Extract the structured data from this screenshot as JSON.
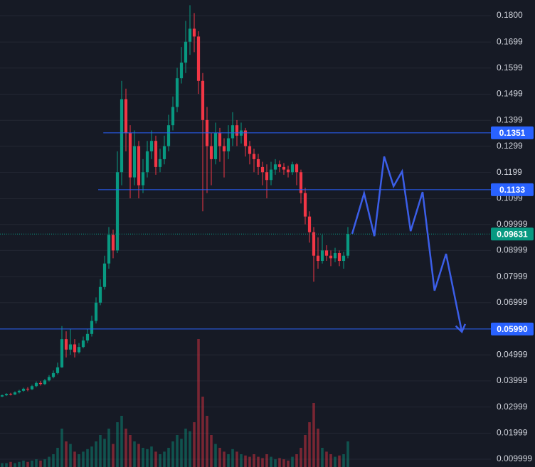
{
  "chart_data": {
    "type": "candlestick",
    "up_color": "#089981",
    "down_color": "#f23645",
    "grid": true,
    "ylim": [
      0.007,
      0.186
    ],
    "yticks": [
      {
        "value": 0.18,
        "label": "0.1800"
      },
      0.1699,
      0.1599,
      0.1499,
      0.1399,
      0.1299,
      0.1199,
      0.1099,
      0.09999,
      0.08999,
      0.07999,
      0.06999,
      0.05999,
      0.04999,
      0.03999,
      0.02999,
      0.01999,
      0.009999
    ],
    "xlim": [
      -0.5,
      114.5
    ],
    "open": [
      0.034,
      0.0345,
      0.035,
      0.0348,
      0.0356,
      0.0362,
      0.037,
      0.0368,
      0.038,
      0.0392,
      0.0388,
      0.0402,
      0.0415,
      0.043,
      0.0452,
      0.056,
      0.052,
      0.054,
      0.051,
      0.053,
      0.0555,
      0.058,
      0.063,
      0.07,
      0.076,
      0.085,
      0.096,
      0.09,
      0.12,
      0.148,
      0.135,
      0.118,
      0.13,
      0.115,
      0.12,
      0.128,
      0.132,
      0.122,
      0.125,
      0.13,
      0.138,
      0.145,
      0.156,
      0.162,
      0.17,
      0.175,
      0.172,
      0.155,
      0.14,
      0.13,
      0.125,
      0.135,
      0.13,
      0.128,
      0.133,
      0.138,
      0.134,
      0.136,
      0.13,
      0.127,
      0.125,
      0.122,
      0.12,
      0.117,
      0.121,
      0.123,
      0.122,
      0.121,
      0.12,
      0.123,
      0.12,
      0.112,
      0.103,
      0.097,
      0.088,
      0.086,
      0.09,
      0.088,
      0.087,
      0.089,
      0.086,
      0.088
    ],
    "high": [
      0.0348,
      0.0353,
      0.0354,
      0.036,
      0.0366,
      0.0374,
      0.0376,
      0.0385,
      0.0398,
      0.04,
      0.0408,
      0.0422,
      0.044,
      0.047,
      0.061,
      0.059,
      0.06,
      0.056,
      0.0545,
      0.057,
      0.06,
      0.065,
      0.072,
      0.079,
      0.088,
      0.099,
      0.098,
      0.128,
      0.155,
      0.152,
      0.138,
      0.136,
      0.132,
      0.125,
      0.132,
      0.136,
      0.134,
      0.129,
      0.134,
      0.142,
      0.149,
      0.16,
      0.168,
      0.178,
      0.184,
      0.181,
      0.174,
      0.158,
      0.145,
      0.135,
      0.139,
      0.137,
      0.133,
      0.138,
      0.143,
      0.14,
      0.139,
      0.137,
      0.132,
      0.129,
      0.127,
      0.124,
      0.123,
      0.124,
      0.125,
      0.1245,
      0.1235,
      0.1225,
      0.124,
      0.1235,
      0.121,
      0.114,
      0.105,
      0.099,
      0.095,
      0.096,
      0.092,
      0.09,
      0.091,
      0.09,
      0.0895,
      0.099
    ],
    "low": [
      0.0338,
      0.0342,
      0.0344,
      0.0346,
      0.0352,
      0.0358,
      0.036,
      0.0365,
      0.0376,
      0.0382,
      0.0384,
      0.0398,
      0.041,
      0.0425,
      0.045,
      0.049,
      0.05,
      0.049,
      0.0505,
      0.0525,
      0.0545,
      0.057,
      0.062,
      0.069,
      0.075,
      0.083,
      0.087,
      0.089,
      0.115,
      0.128,
      0.11,
      0.115,
      0.11,
      0.112,
      0.118,
      0.125,
      0.119,
      0.12,
      0.123,
      0.128,
      0.136,
      0.143,
      0.154,
      0.158,
      0.165,
      0.166,
      0.15,
      0.105,
      0.112,
      0.115,
      0.123,
      0.124,
      0.118,
      0.125,
      0.13,
      0.13,
      0.131,
      0.126,
      0.123,
      0.12,
      0.119,
      0.115,
      0.11,
      0.115,
      0.119,
      0.12,
      0.119,
      0.118,
      0.119,
      0.115,
      0.108,
      0.1,
      0.093,
      0.078,
      0.083,
      0.085,
      0.086,
      0.084,
      0.0855,
      0.084,
      0.083,
      0.087
    ],
    "close": [
      0.0345,
      0.035,
      0.0348,
      0.0356,
      0.0362,
      0.037,
      0.0368,
      0.038,
      0.0392,
      0.0388,
      0.0402,
      0.0415,
      0.043,
      0.0452,
      0.056,
      0.052,
      0.054,
      0.051,
      0.053,
      0.0555,
      0.058,
      0.063,
      0.07,
      0.076,
      0.085,
      0.096,
      0.09,
      0.12,
      0.148,
      0.135,
      0.118,
      0.13,
      0.115,
      0.12,
      0.128,
      0.132,
      0.122,
      0.125,
      0.13,
      0.138,
      0.145,
      0.156,
      0.162,
      0.17,
      0.175,
      0.172,
      0.155,
      0.14,
      0.13,
      0.125,
      0.135,
      0.13,
      0.128,
      0.133,
      0.138,
      0.134,
      0.136,
      0.13,
      0.127,
      0.125,
      0.122,
      0.12,
      0.117,
      0.121,
      0.123,
      0.122,
      0.121,
      0.12,
      0.123,
      0.12,
      0.112,
      0.103,
      0.097,
      0.088,
      0.086,
      0.09,
      0.088,
      0.087,
      0.089,
      0.086,
      0.088,
      0.0963
    ],
    "volume": [
      3,
      3,
      4,
      3,
      4,
      5,
      4,
      5,
      6,
      5,
      6,
      8,
      10,
      15,
      30,
      20,
      18,
      12,
      10,
      12,
      14,
      16,
      20,
      25,
      22,
      30,
      18,
      35,
      40,
      30,
      25,
      20,
      18,
      15,
      14,
      16,
      12,
      10,
      12,
      15,
      20,
      25,
      22,
      30,
      28,
      35,
      100,
      55,
      40,
      25,
      18,
      15,
      12,
      10,
      14,
      12,
      10,
      9,
      8,
      10,
      8,
      7,
      10,
      8,
      6,
      7,
      6,
      5,
      8,
      10,
      15,
      25,
      35,
      50,
      30,
      15,
      12,
      10,
      8,
      9,
      10,
      20
    ],
    "price_lines": [
      {
        "value": 0.1351,
        "from": 23.7,
        "color": "#2962ff"
      },
      {
        "value": 0.1133,
        "from": 22.5,
        "color": "#2962ff"
      },
      {
        "value": {
          "value": 0.0599,
          "label": "0.05990"
        },
        "from": -0.5,
        "color": "#2962ff"
      },
      {
        "value": 0.09631,
        "from": -0.5,
        "color": "#089981",
        "style": "dotted"
      }
    ],
    "projection": {
      "color": "#3b5ee8",
      "x": [
        82,
        84.8,
        87.2,
        89.5,
        91.7,
        93.7,
        95.7,
        98.5,
        101.3,
        104,
        107.7
      ],
      "values": [
        0.0964,
        0.1119,
        0.0955,
        0.126,
        0.1146,
        0.1203,
        0.0974,
        0.1124,
        0.0746,
        0.0887,
        0.0588
      ]
    }
  }
}
